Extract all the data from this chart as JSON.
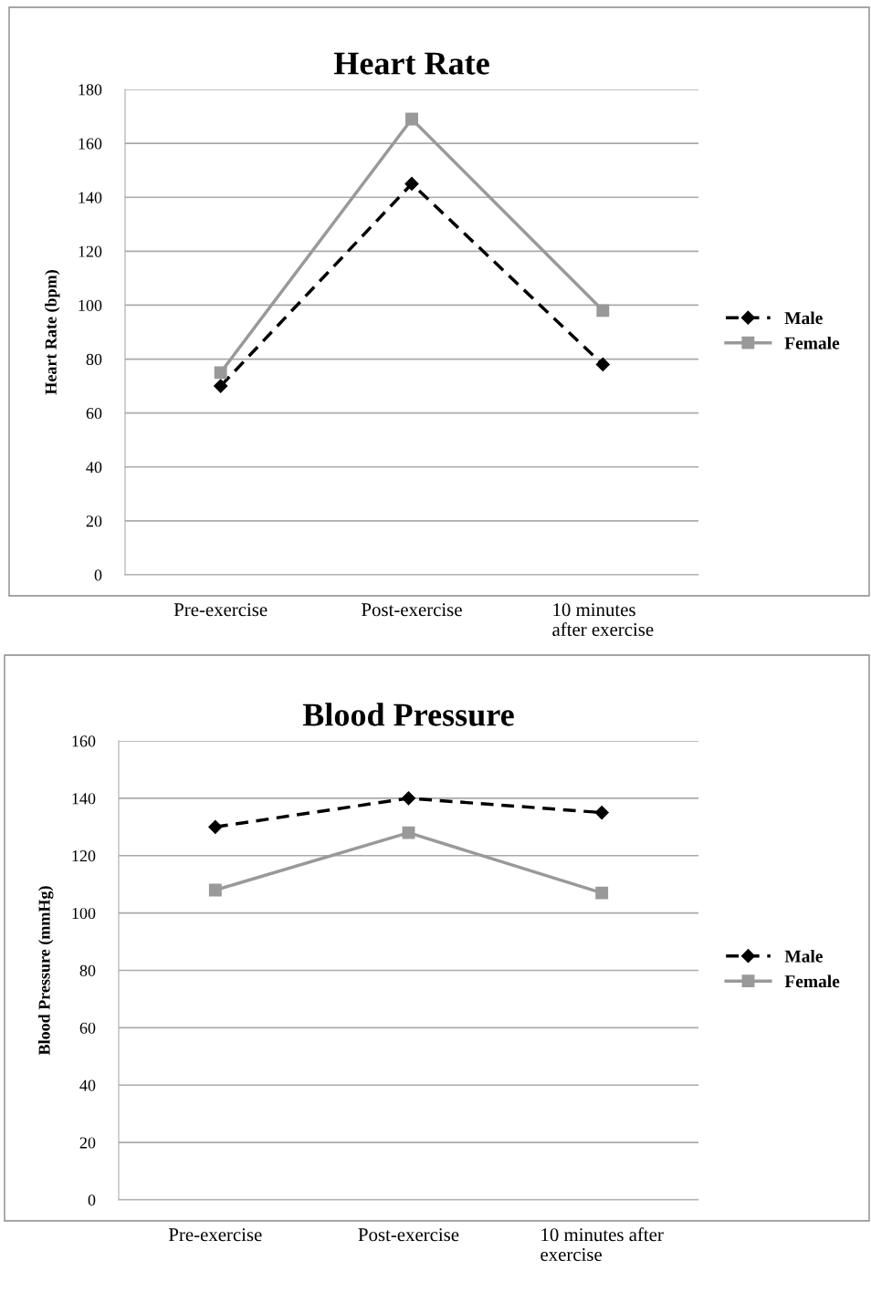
{
  "chart_data": [
    {
      "type": "line",
      "title": "Heart Rate",
      "ylabel": "Heart Rate (bpm)",
      "categories": [
        "Pre-exercise",
        "Post-exercise",
        "10 minutes\nafter exercise"
      ],
      "series": [
        {
          "name": "Male",
          "color": "#000000",
          "values": [
            70,
            145,
            78
          ],
          "marker": "diamond",
          "line_style": "dashed"
        },
        {
          "name": "Female",
          "color": "#999999",
          "values": [
            75,
            169,
            98
          ],
          "marker": "square",
          "line_style": "solid"
        }
      ],
      "ylim": [
        0,
        180
      ],
      "yticks": [
        0,
        20,
        40,
        60,
        80,
        100,
        120,
        140,
        160,
        180
      ],
      "grid": "y",
      "legend": "right"
    },
    {
      "type": "line",
      "title": "Blood Pressure",
      "ylabel": "Blood Pressure (mmHg)",
      "categories": [
        "Pre-exercise",
        "Post-exercise",
        "10 minutes after\nexercise"
      ],
      "series": [
        {
          "name": "Male",
          "color": "#000000",
          "values": [
            130,
            140,
            135
          ],
          "marker": "diamond",
          "line_style": "dashed"
        },
        {
          "name": "Female",
          "color": "#999999",
          "values": [
            108,
            128,
            107
          ],
          "marker": "square",
          "line_style": "solid"
        }
      ],
      "ylim": [
        0,
        160
      ],
      "yticks": [
        0,
        20,
        40,
        60,
        80,
        100,
        120,
        140,
        160
      ],
      "grid": "y",
      "legend": "right"
    }
  ]
}
